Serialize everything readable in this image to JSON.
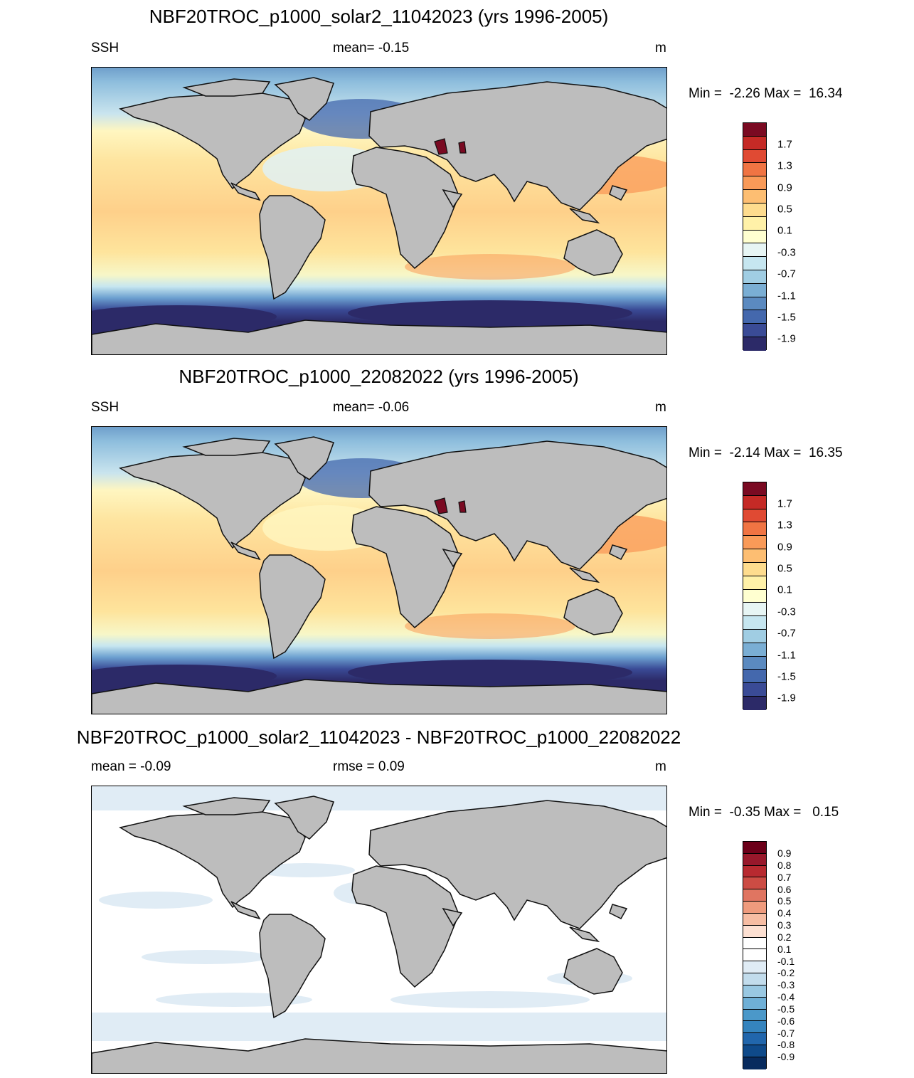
{
  "panels": [
    {
      "title": "NBF20TROC_p1000_solar2_11042023 (yrs 1996-2005)",
      "left_label": "SSH",
      "center_label": "mean=  -0.15",
      "unit": "m",
      "minmax": "Min =  -2.26 Max =  16.34",
      "colorbar_labels": [
        "1.7",
        "1.3",
        "0.9",
        "0.5",
        "0.1",
        "-0.3",
        "-0.7",
        "-1.1",
        "-1.5",
        "-1.9"
      ]
    },
    {
      "title": "NBF20TROC_p1000_22082022 (yrs 1996-2005)",
      "left_label": "SSH",
      "center_label": "mean=  -0.06",
      "unit": "m",
      "minmax": "Min =  -2.14 Max =  16.35",
      "colorbar_labels": [
        "1.7",
        "1.3",
        "0.9",
        "0.5",
        "0.1",
        "-0.3",
        "-0.7",
        "-1.1",
        "-1.5",
        "-1.9"
      ]
    },
    {
      "title": "NBF20TROC_p1000_solar2_11042023 - NBF20TROC_p1000_22082022",
      "left_label": "mean =  -0.09",
      "center_label": "rmse =   0.09",
      "unit": "m",
      "minmax": "Min =  -0.35 Max =   0.15",
      "colorbar_labels": [
        "0.9",
        "0.8",
        "0.7",
        "0.6",
        "0.5",
        "0.4",
        "0.3",
        "0.2",
        "0.1",
        "-0.1",
        "-0.2",
        "-0.3",
        "-0.4",
        "-0.5",
        "-0.6",
        "-0.7",
        "-0.8",
        "-0.9"
      ]
    }
  ],
  "colors": {
    "land": "#bdbdbd",
    "ssh_scale": [
      "#2c2a68",
      "#3a4b96",
      "#4468ad",
      "#5b8ac0",
      "#7aaed4",
      "#a0cde3",
      "#c6e6f0",
      "#e7f5f4",
      "#ffffd0",
      "#fff1a8",
      "#fedc8e",
      "#fdbe72",
      "#f99a58",
      "#f07443",
      "#e04a33",
      "#c52a26",
      "#7a0a22"
    ],
    "diff_scale": [
      "#082b5e",
      "#0f4a8a",
      "#2166ac",
      "#3584be",
      "#4b98c9",
      "#6fb0d7",
      "#99c8e2",
      "#c2dcec",
      "#e0ecf5",
      "#ffffff",
      "#fde0d2",
      "#f7bda3",
      "#ef9b7d",
      "#e07561",
      "#cc4c44",
      "#b82a30",
      "#98182b",
      "#6c0019"
    ]
  }
}
